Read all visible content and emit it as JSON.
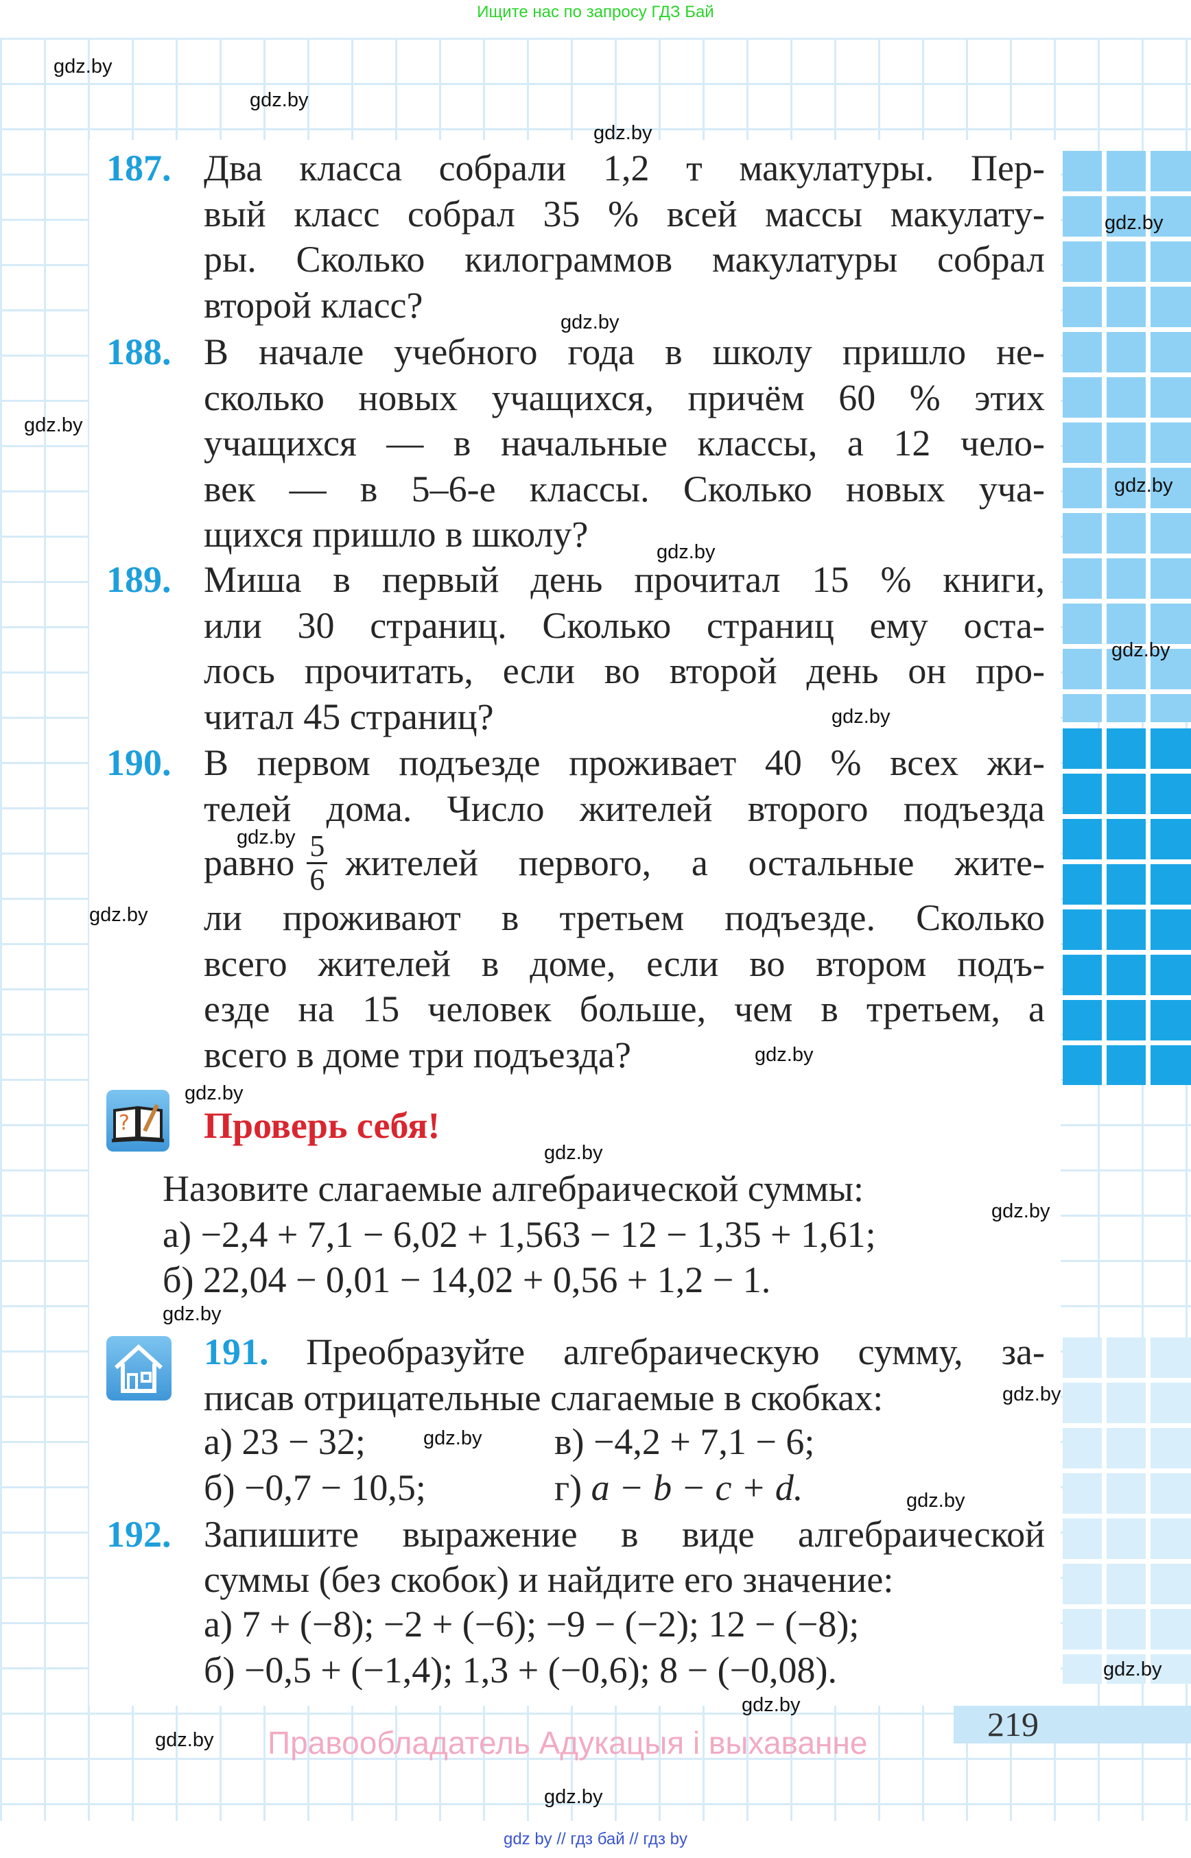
{
  "top_note": "Ищите нас по запросу ГДЗ Бай",
  "bottom_note": "gdz by  //  гдз бай  //  гдз by",
  "watermark": "gdz.by",
  "copyright": "Правообладатель Адукацыя і выхаванне",
  "page_number": "219",
  "colors": {
    "number": "#1e9fdc",
    "check_title": "#d9262f",
    "stripe_light": "#8fd1f5",
    "stripe_strong": "#1aa6e6",
    "grid": "#d6ebf8"
  },
  "problems": {
    "p187": {
      "num": "187.",
      "lines": [
        "Два класса собрали 1,2 т макулатуры. Пер-",
        "вый класс собрал 35 % всей массы макулату-",
        "ры. Сколько килограммов макулатуры собрал",
        "второй класс?"
      ]
    },
    "p188": {
      "num": "188.",
      "lines": [
        "В начале учебного года в школу пришло не-",
        "сколько новых учащихся, причём 60 % этих",
        "учащихся — в начальные классы, а 12 чело-",
        "век — в 5–6-е классы. Сколько новых уча-",
        "щихся пришло в школу?"
      ]
    },
    "p189": {
      "num": "189.",
      "lines": [
        "Миша в первый день прочитал 15 % книги,",
        "или 30 страниц. Сколько страниц ему оста-",
        "лось прочитать, если во второй день он про-",
        "читал 45 страниц?"
      ]
    },
    "p190": {
      "num": "190.",
      "lines": [
        "В первом подъезде проживает 40 % всех жи-",
        "телей дома. Число жителей второго подъезда"
      ],
      "frac_before": "равно",
      "frac_num": "5",
      "frac_den": "6",
      "frac_after": "жителей первого, а остальные жите-",
      "lines2": [
        "ли проживают в третьем подъезде. Сколько",
        "всего жителей в доме, если во втором подъ-",
        "езде на 15 человек больше, чем в третьем, а",
        "всего в доме три подъезда?"
      ]
    }
  },
  "check": {
    "title": "Проверь себя!",
    "icon": "book-question-icon",
    "intro": "Назовите слагаемые алгебраической суммы:",
    "a": "а) −2,4 + 7,1 − 6,02 + 1,563 − 12 − 1,35 + 1,61;",
    "b": "б) 22,04 − 0,01 − 14,02 + 0,56 + 1,2 − 1."
  },
  "p191": {
    "num": "191.",
    "icon": "home-icon",
    "line1": "Преобразуйте алгебраическую сумму, за-",
    "line2": "писав отрицательные слагаемые в скобках:",
    "a": "а) 23 − 32;",
    "v": "в) −4,2 + 7,1 − 6;",
    "b": "б) −0,7 − 10,5;",
    "g_label": "г) ",
    "g_expr": "a − b − c + d."
  },
  "p192": {
    "num": "192.",
    "line1": "Запишите выражение в виде алгебраической",
    "line2": "суммы (без скобок) и найдите его значение:",
    "a": "а) 7 + (−8); −2 + (−6); −9 − (−2); 12 − (−8);",
    "b": "б) −0,5 + (−1,4); 1,3 + (−0,6); 8 − (−0,08)."
  }
}
